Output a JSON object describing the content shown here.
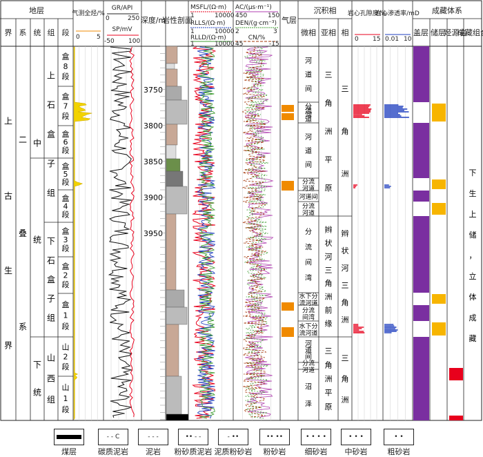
{
  "header": {
    "formation": "地层",
    "ranks": [
      "界",
      "系",
      "统",
      "组",
      "段"
    ],
    "gas_log": "气测全烃/%",
    "gas_range": [
      "0",
      "5"
    ],
    "gr_label": "GR/API",
    "gr_range": [
      "0",
      "250"
    ],
    "sp_label": "SP/mV",
    "sp_range": [
      "-50",
      "100"
    ],
    "depth": "深度/m",
    "lith": "岩性剖面",
    "msfl_label": "MSFL/(Ω·m)",
    "msfl_range": [
      "1",
      "10000"
    ],
    "rlls_label": "RLLS/(Ω·m)",
    "rlls_range": [
      "1",
      "10000"
    ],
    "rlld_label": "RLLD/(Ω·m)",
    "rlld_range": [
      "1",
      "10000"
    ],
    "ac_label": "AC/(μs·m⁻¹)",
    "ac_range": [
      "450",
      "150"
    ],
    "den_label": "DEN/(g·cm⁻³)",
    "den_range": [
      "2",
      "3"
    ],
    "cn_label": "CN/%",
    "cn_range": [
      "45",
      "-15"
    ],
    "gas_layer": "气层",
    "facies": "沉积相",
    "micro": "微相",
    "sub": "亚相",
    "phase": "相",
    "poro": "岩心孔隙度/%",
    "poro_range": [
      "0",
      "15"
    ],
    "perm": "岩心渗透率/mD",
    "perm_range": [
      "0.01",
      "10"
    ],
    "system": "成藏体系",
    "cap": "盖层",
    "res": "储层",
    "src": "烃源岩",
    "combo": "成藏组合"
  },
  "strat": {
    "erathem": "上古生界",
    "system": "二叠系",
    "series_mid": "中统",
    "series_low": "下统",
    "fm_upper": "上石盒子组",
    "fm_lower": "下石盒子组",
    "fm_shanxi": "山西组",
    "members": [
      "盒8段",
      "盒7段",
      "盒6段",
      "盒5段",
      "盒4段",
      "盒3段",
      "盒2段",
      "盒1段",
      "山2段",
      "山1段"
    ]
  },
  "depth_ticks": [
    "3750",
    "3800",
    "3850",
    "3900",
    "3950"
  ],
  "facies_rows": {
    "micro": [
      "河道间",
      "分流河道",
      "河道间",
      "分流河道",
      "河道间",
      "分流河道",
      "分流间湾",
      "水下分流河道",
      "分流间湾",
      "水下分流河道",
      "河道间",
      "分流河道",
      "沼泽"
    ],
    "sub": [
      "三角洲平原",
      "辫状河三角洲前缘",
      "三角洲平原"
    ],
    "phase": [
      "三角洲",
      "辫状河三角洲",
      "三角洲"
    ]
  },
  "combo_text": "下生上储，立体成藏",
  "legend": [
    "煤层",
    "碳质泥岩",
    "泥岩",
    "粉砂质泥岩",
    "泥质粉砂岩",
    "粉砂岩",
    "细砂岩",
    "中砂岩",
    "粗砂岩"
  ],
  "legend_patterns": [
    "-",
    "- - C",
    "- - -",
    "•• - -",
    "- ••",
    "•• ••",
    "• • • •",
    "• • •",
    "•  •"
  ],
  "colors": {
    "gas": "#f2d300",
    "gas_layer": "#f08a00",
    "cap": "#7a2fa0",
    "res": "#f7b500",
    "src": "#e8001c",
    "msfl": "#e8001c",
    "rlls": "#1f3fbf",
    "rlld": "#3c9c2f",
    "ac": "#b03fb0",
    "den": "#3c9c2f",
    "cn": "#a03000"
  }
}
